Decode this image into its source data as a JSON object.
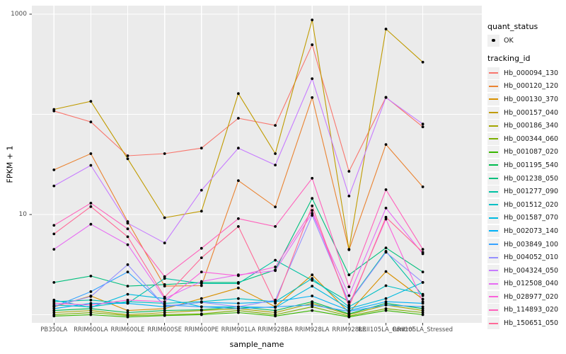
{
  "figure": {
    "background": "#FFFFFF",
    "panel_background": "#EBEBEB",
    "gridline_color": "#FFFFFF",
    "point_color": "#000000",
    "tick_color": "#333333",
    "axis_text_color": "#4D4D4D"
  },
  "legend": {
    "quant_title": "quant_status",
    "quant_items": [
      {
        "label": "OK",
        "symbol": "point"
      }
    ],
    "tracking_title": "tracking_id"
  },
  "chart_data": {
    "type": "line",
    "title": "",
    "xlabel": "sample_name",
    "ylabel": "FPKM + 1",
    "y_scale": "log10",
    "ylim": [
      0.83,
      1215
    ],
    "y_ticks": [
      {
        "label": "1000",
        "value": 1000
      },
      {
        "label": "10",
        "value": 10
      }
    ],
    "major_gridlines": [
      10,
      1000
    ],
    "minor_gridlines": [
      1,
      100
    ],
    "grid": "on",
    "legend_position": "right",
    "point_shape": "filled-circle",
    "categories": [
      "PB350LA",
      "RRIM600LA",
      "RRIM600LE",
      "RRIM600SE",
      "RRIM600PE",
      "RRIM901LA",
      "RRIM928BA",
      "RRIM928LA",
      "RRIM928LE",
      "RRII105LA_Control",
      "RRII105LA_Stressed"
    ],
    "series": [
      {
        "name": "Hb_000094_130",
        "color": "#F8766D",
        "values": [
          108,
          84,
          38.6,
          40.5,
          46,
          91.5,
          77.6,
          495,
          27,
          148,
          75
        ]
      },
      {
        "name": "Hb_000120_120",
        "color": "#EA8331",
        "values": [
          27.9,
          40.5,
          8.5,
          1.93,
          1.95,
          21.8,
          11.9,
          147,
          4.45,
          50,
          18.9
        ]
      },
      {
        "name": "Hb_000130_370",
        "color": "#D89000",
        "values": [
          1.2,
          1.54,
          1.1,
          1.15,
          1.45,
          1.85,
          1.2,
          2.5,
          1.05,
          2.7,
          1.43
        ]
      },
      {
        "name": "Hb_000157_040",
        "color": "#C09B00",
        "values": [
          112,
          135,
          36,
          9.3,
          10.8,
          161,
          40.5,
          877,
          4.5,
          710,
          332
        ]
      },
      {
        "name": "Hb_000186_340",
        "color": "#A3A500",
        "values": [
          1.05,
          1.1,
          1.0,
          1.05,
          1.1,
          1.15,
          1.05,
          1.3,
          1.0,
          1.25,
          1.1
        ]
      },
      {
        "name": "Hb_000344_060",
        "color": "#7CAE00",
        "values": [
          1.0,
          1.05,
          0.98,
          1.0,
          1.02,
          1.1,
          1.0,
          1.2,
          0.97,
          1.15,
          1.05
        ]
      },
      {
        "name": "Hb_001087_020",
        "color": "#39B600",
        "values": [
          0.97,
          1.0,
          0.95,
          0.98,
          1.0,
          1.05,
          0.97,
          1.1,
          0.95,
          1.1,
          1.0
        ]
      },
      {
        "name": "Hb_001195_540",
        "color": "#00BB4E",
        "values": [
          1.1,
          1.15,
          1.05,
          1.1,
          1.12,
          1.2,
          1.1,
          1.35,
          1.02,
          1.3,
          1.15
        ]
      },
      {
        "name": "Hb_001238_050",
        "color": "#00BF7D",
        "values": [
          2.1,
          2.43,
          1.93,
          2.0,
          2.1,
          2.1,
          2.8,
          14.5,
          2.5,
          4.65,
          2.67
        ]
      },
      {
        "name": "Hb_001277_090",
        "color": "#00C1A3",
        "values": [
          1.35,
          1.4,
          1.3,
          2.3,
          2.05,
          2.05,
          3.5,
          2.2,
          1.35,
          4.3,
          1.55
        ]
      },
      {
        "name": "Hb_001512_020",
        "color": "#00BFC4",
        "values": [
          1.25,
          1.2,
          1.35,
          1.3,
          1.35,
          1.45,
          1.35,
          2.3,
          1.2,
          1.95,
          1.6
        ]
      },
      {
        "name": "Hb_001587_070",
        "color": "#00BAE0",
        "values": [
          1.4,
          1.18,
          1.6,
          1.45,
          1.2,
          1.2,
          1.18,
          1.93,
          1.15,
          1.45,
          2.1
        ]
      },
      {
        "name": "Hb_002073_140",
        "color": "#00B0F6",
        "values": [
          1.15,
          1.3,
          1.3,
          1.2,
          1.33,
          1.3,
          1.35,
          1.54,
          1.1,
          1.35,
          1.3
        ]
      },
      {
        "name": "Hb_003849_100",
        "color": "#35A2FF",
        "values": [
          1.2,
          1.7,
          2.67,
          1.25,
          1.2,
          1.15,
          1.2,
          1.25,
          1.08,
          1.25,
          1.2
        ]
      },
      {
        "name": "Hb_004052_010",
        "color": "#9590FF",
        "values": [
          1.22,
          1.52,
          3.16,
          1.22,
          1.33,
          1.2,
          1.4,
          9.8,
          1.33,
          4.2,
          2.1
        ]
      },
      {
        "name": "Hb_004324_050",
        "color": "#C77CFF",
        "values": [
          19.3,
          31,
          8.2,
          5.2,
          17.5,
          46,
          31.2,
          227,
          15.3,
          147,
          80
        ]
      },
      {
        "name": "Hb_012508_040",
        "color": "#E76BF3",
        "values": [
          4.5,
          8.0,
          5.0,
          1.45,
          2.15,
          2.5,
          2.75,
          10.3,
          1.55,
          11.6,
          4.05
        ]
      },
      {
        "name": "Hb_028977_020",
        "color": "#FA62DB",
        "values": [
          1.3,
          1.25,
          1.4,
          1.35,
          2.67,
          2.45,
          3.0,
          11.0,
          1.25,
          9.0,
          1.35
        ]
      },
      {
        "name": "Hb_114893_020",
        "color": "#FF62BC",
        "values": [
          7.8,
          13,
          7.2,
          2.4,
          4.6,
          9.1,
          7.6,
          23,
          1.9,
          17.7,
          4.5
        ]
      },
      {
        "name": "Hb_150651_050",
        "color": "#FF6A98",
        "values": [
          6.4,
          12,
          6.0,
          1.5,
          3.7,
          7.6,
          1.3,
          12.2,
          1.2,
          9.4,
          4.2
        ]
      }
    ]
  }
}
